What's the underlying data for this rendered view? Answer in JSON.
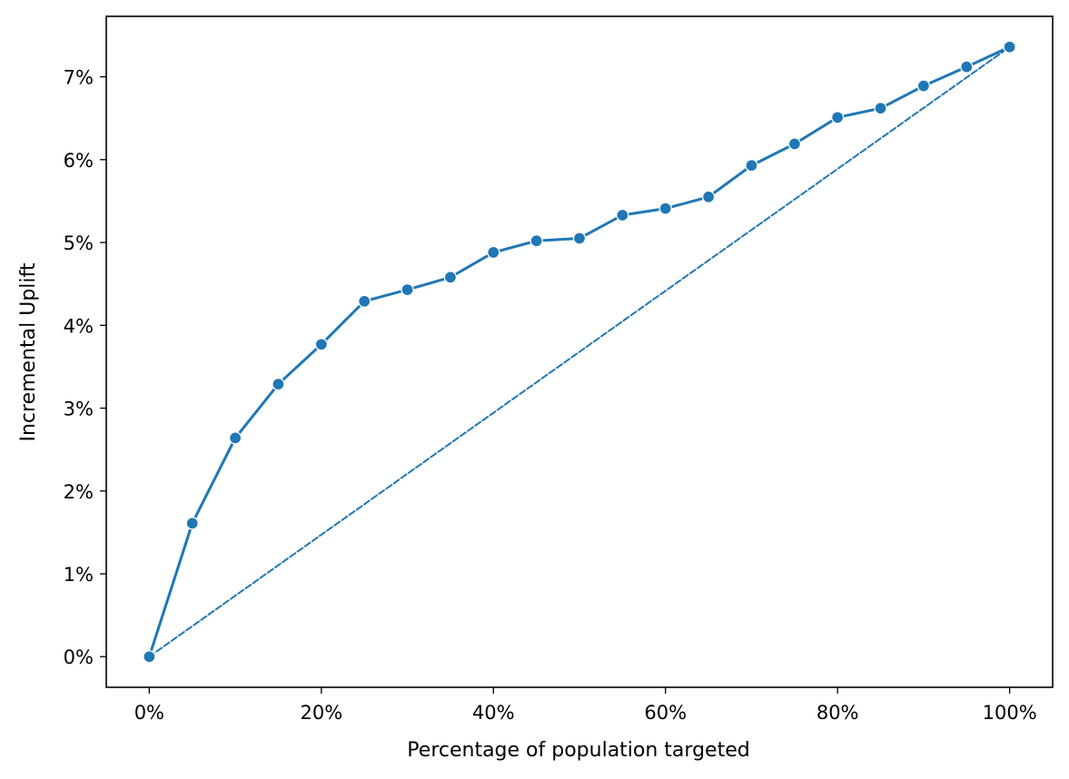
{
  "chart_data": {
    "type": "line",
    "xlabel": "Percentage of population targeted",
    "ylabel": "Incremental Uplift",
    "x": [
      0,
      5,
      10,
      15,
      20,
      25,
      30,
      35,
      40,
      45,
      50,
      55,
      60,
      65,
      70,
      75,
      80,
      85,
      90,
      95,
      100
    ],
    "series": [
      {
        "values": [
          0.0,
          1.61,
          2.64,
          3.29,
          3.77,
          4.29,
          4.43,
          4.58,
          4.88,
          5.02,
          5.05,
          5.33,
          5.41,
          5.55,
          5.93,
          6.19,
          6.51,
          6.62,
          6.89,
          7.12,
          7.36
        ],
        "color": "#1f77b4",
        "style": "solid",
        "markers": true
      },
      {
        "values": [
          0.0,
          7.36
        ],
        "x": [
          0,
          100
        ],
        "color": "#1f77b4",
        "style": "dashed",
        "markers": false
      }
    ],
    "xticks": [
      0,
      20,
      40,
      60,
      80,
      100
    ],
    "xtick_labels": [
      "0%",
      "20%",
      "40%",
      "60%",
      "80%",
      "100%"
    ],
    "yticks": [
      0,
      1,
      2,
      3,
      4,
      5,
      6,
      7
    ],
    "ytick_labels": [
      "0%",
      "1%",
      "2%",
      "3%",
      "4%",
      "5%",
      "6%",
      "7%"
    ],
    "xlim": [
      -5,
      105
    ],
    "ylim": [
      -0.37,
      7.73
    ],
    "grid": false,
    "legend": "none"
  }
}
